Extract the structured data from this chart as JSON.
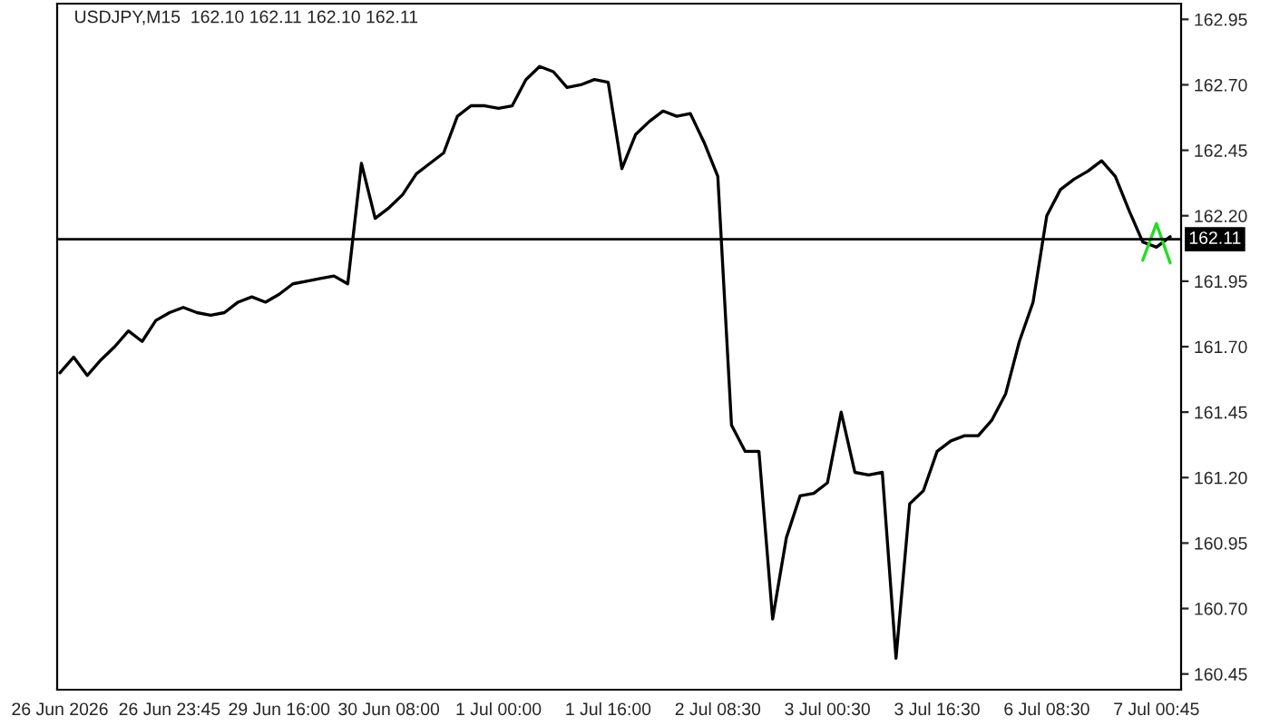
{
  "chart_data": {
    "type": "line",
    "title": "USDJPY,M15  162.10 162.11 162.10 162.11",
    "categories": [
      "26 Jun 2026",
      null,
      null,
      null,
      null,
      null,
      null,
      null,
      "26 Jun 23:45",
      null,
      null,
      null,
      null,
      null,
      null,
      null,
      "29 Jun 16:00",
      null,
      null,
      null,
      null,
      null,
      null,
      null,
      "30 Jun 08:00",
      null,
      null,
      null,
      null,
      null,
      null,
      null,
      "1 Jul 00:00",
      null,
      null,
      null,
      null,
      null,
      null,
      null,
      "1 Jul 16:00",
      null,
      null,
      null,
      null,
      null,
      null,
      null,
      "2 Jul 08:30",
      null,
      null,
      null,
      null,
      null,
      null,
      null,
      "3 Jul 00:30",
      null,
      null,
      null,
      null,
      null,
      null,
      null,
      "3 Jul 16:30",
      null,
      null,
      null,
      null,
      null,
      null,
      null,
      "6 Jul 08:30",
      null,
      null,
      null,
      null,
      null,
      null,
      null,
      "7 Jul 00:45",
      null
    ],
    "series": [
      {
        "color": "#000000",
        "values": [
          161.6,
          161.66,
          161.59,
          161.65,
          161.7,
          161.76,
          161.72,
          161.8,
          161.83,
          161.85,
          161.83,
          161.82,
          161.83,
          161.87,
          161.89,
          161.87,
          161.9,
          161.94,
          161.95,
          161.96,
          161.97,
          161.94,
          162.4,
          162.19,
          162.23,
          162.28,
          162.36,
          162.4,
          162.44,
          162.58,
          162.62,
          162.62,
          162.61,
          162.62,
          162.72,
          162.77,
          162.75,
          162.69,
          162.7,
          162.72,
          162.71,
          162.38,
          162.51,
          162.56,
          162.6,
          162.58,
          162.59,
          162.48,
          162.35,
          161.4,
          161.3,
          161.3,
          160.66,
          160.97,
          161.13,
          161.14,
          161.18,
          161.45,
          161.22,
          161.21,
          161.22,
          160.51,
          161.1,
          161.15,
          161.3,
          161.34,
          161.36,
          161.36,
          161.42,
          161.52,
          161.72,
          161.87,
          162.2,
          162.3,
          162.34,
          162.37,
          162.41,
          162.35,
          162.22,
          162.1,
          162.08,
          162.12
        ]
      },
      {
        "color": "#22dd22",
        "values": [
          null,
          null,
          null,
          null,
          null,
          null,
          null,
          null,
          null,
          null,
          null,
          null,
          null,
          null,
          null,
          null,
          null,
          null,
          null,
          null,
          null,
          null,
          null,
          null,
          null,
          null,
          null,
          null,
          null,
          null,
          null,
          null,
          null,
          null,
          null,
          null,
          null,
          null,
          null,
          null,
          null,
          null,
          null,
          null,
          null,
          null,
          null,
          null,
          null,
          null,
          null,
          null,
          null,
          null,
          null,
          null,
          null,
          null,
          null,
          null,
          null,
          null,
          null,
          null,
          null,
          null,
          null,
          null,
          null,
          null,
          null,
          null,
          null,
          null,
          null,
          null,
          null,
          null,
          null,
          162.03,
          162.17,
          162.02
        ]
      }
    ],
    "ylim": [
      160.39,
      163.01
    ],
    "yticks": [
      160.45,
      {
        "value": 160.7,
        "label": "160.70"
      },
      160.95,
      {
        "value": 161.2,
        "label": "161.20"
      },
      161.45,
      {
        "value": 161.7,
        "label": "161.70"
      },
      161.95,
      {
        "value": 162.2,
        "label": "162.20"
      },
      162.45,
      {
        "value": 162.7,
        "label": "162.70"
      },
      162.95
    ],
    "ref_lines": [
      {
        "axis": "y",
        "value": 162.11,
        "label": "162.11",
        "color": "#000000"
      }
    ],
    "grid": false,
    "legend": false
  }
}
